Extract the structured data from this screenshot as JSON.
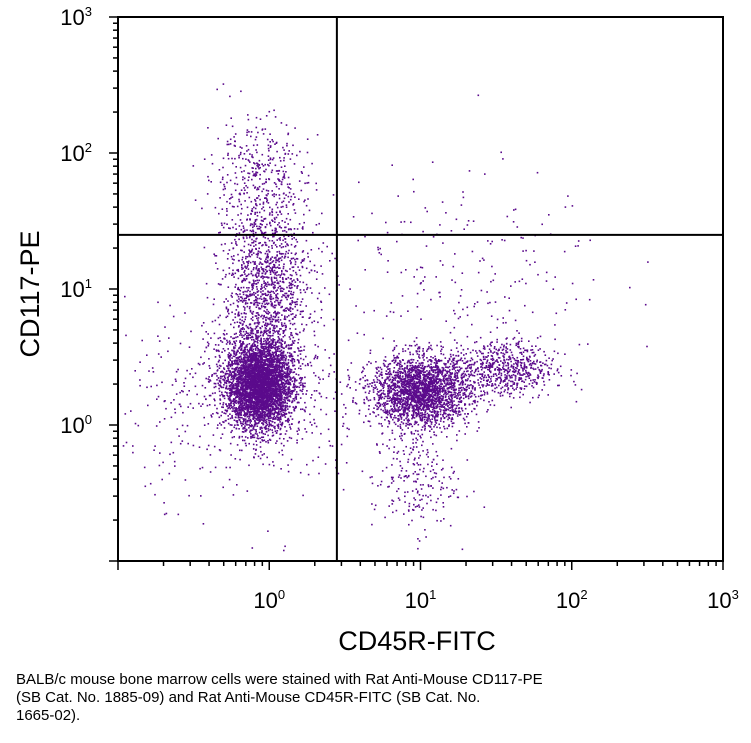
{
  "chart_data": {
    "type": "scatter",
    "xlabel": "CD45R-FITC",
    "ylabel": "CD117-PE",
    "x_scale": "log",
    "y_scale": "log",
    "xlim": [
      0.1,
      1000
    ],
    "ylim": [
      0.1,
      1000
    ],
    "x_ticks": [
      {
        "base": "10",
        "exp": "0",
        "value": 1
      },
      {
        "base": "10",
        "exp": "1",
        "value": 10
      },
      {
        "base": "10",
        "exp": "2",
        "value": 100
      },
      {
        "base": "10",
        "exp": "3",
        "value": 1000
      }
    ],
    "y_ticks": [
      {
        "base": "10",
        "exp": "0",
        "value": 1
      },
      {
        "base": "10",
        "exp": "1",
        "value": 10
      },
      {
        "base": "10",
        "exp": "2",
        "value": 100
      },
      {
        "base": "10",
        "exp": "3",
        "value": 1000
      }
    ],
    "quadrant_gate": {
      "x": 2.8,
      "y": 25
    },
    "point_color": "#5b0a8c",
    "grid": false,
    "populations": [
      {
        "center": {
          "x": 0.85,
          "y": 2.0
        },
        "spread_log": {
          "x": 0.11,
          "y": 0.16
        },
        "count": 4200
      },
      {
        "center": {
          "x": 0.95,
          "y": 10.0
        },
        "spread_log": {
          "x": 0.14,
          "y": 0.35
        },
        "count": 1400
      },
      {
        "center": {
          "x": 0.8,
          "y": 70.0
        },
        "spread_log": {
          "x": 0.17,
          "y": 0.22
        },
        "count": 320
      },
      {
        "center": {
          "x": 10.0,
          "y": 1.8
        },
        "spread_log": {
          "x": 0.16,
          "y": 0.13
        },
        "count": 2400
      },
      {
        "center": {
          "x": 35.0,
          "y": 2.6
        },
        "spread_log": {
          "x": 0.17,
          "y": 0.11
        },
        "count": 650
      },
      {
        "center": {
          "x": 9.0,
          "y": 0.4
        },
        "spread_log": {
          "x": 0.14,
          "y": 0.2
        },
        "count": 220
      },
      {
        "center": {
          "x": 15.0,
          "y": 15.0
        },
        "spread_log": {
          "x": 0.55,
          "y": 0.35
        },
        "count": 220
      },
      {
        "center": {
          "x": 0.7,
          "y": 1.5
        },
        "spread_log": {
          "x": 0.4,
          "y": 0.35
        },
        "count": 500
      }
    ]
  },
  "caption": {
    "line1": "BALB/c mouse bone marrow cells were stained with Rat Anti-Mouse CD117-PE",
    "line2": "(SB Cat. No. 1885-09) and Rat Anti-Mouse CD45R-FITC (SB Cat. No.",
    "line3": "1665-02)."
  }
}
